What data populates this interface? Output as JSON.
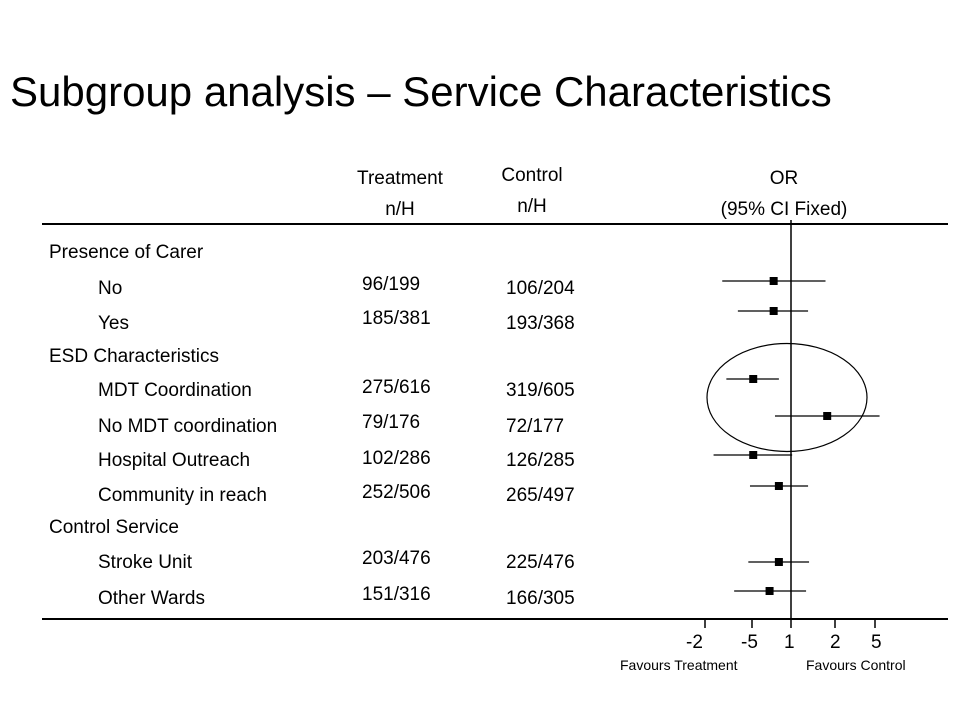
{
  "title": "Subgroup analysis – Service Characteristics",
  "headers": {
    "treatment": [
      "Treatment",
      "n/H"
    ],
    "control": [
      "Control",
      "n/H"
    ],
    "or": [
      "OR",
      "(95% CI Fixed)"
    ]
  },
  "groups": [
    {
      "label": "Presence of Carer"
    },
    {
      "label": "ESD Characteristics"
    },
    {
      "label": "Control Service"
    }
  ],
  "rows": [
    {
      "label": "No",
      "treatment": "96/199",
      "control": "106/204"
    },
    {
      "label": "Yes",
      "treatment": "185/381",
      "control": "193/368"
    },
    {
      "label": "MDT Coordination",
      "treatment": "275/616",
      "control": "319/605"
    },
    {
      "label": "No MDT coordination",
      "treatment": "79/176",
      "control": "72/177"
    },
    {
      "label": "Hospital Outreach",
      "treatment": "102/286",
      "control": "126/285"
    },
    {
      "label": "Community in reach",
      "treatment": "252/506",
      "control": "265/497"
    },
    {
      "label": "Stroke Unit",
      "treatment": "203/476",
      "control": "225/476"
    },
    {
      "label": "Other Wards",
      "treatment": "151/316",
      "control": "166/305"
    }
  ],
  "axis": {
    "ticks": [
      "-2",
      "-5",
      "1",
      "2",
      "5"
    ],
    "favours_left": "Favours Treatment",
    "favours_right": "Favours Control"
  },
  "chart_data": {
    "type": "forest",
    "title": "Subgroup analysis – Service Characteristics",
    "xlabel": "OR (95% CI Fixed)",
    "reference_line": 1,
    "tick_labels": [
      "-2",
      "-5",
      "1",
      "2",
      "5"
    ],
    "highlighted_rows": [
      "MDT Coordination",
      "No MDT coordination"
    ],
    "series": [
      {
        "label": "No",
        "or": 0.86,
        "ci": [
          0.55,
          1.35
        ]
      },
      {
        "label": "Yes",
        "or": 0.86,
        "ci": [
          0.63,
          1.16
        ]
      },
      {
        "label": "MDT Coordination",
        "or": 0.72,
        "ci": [
          0.57,
          0.9
        ]
      },
      {
        "label": "No MDT coordination",
        "or": 1.37,
        "ci": [
          0.87,
          2.16
        ]
      },
      {
        "label": "Hospital Outreach",
        "or": 0.72,
        "ci": [
          0.51,
          1.01
        ]
      },
      {
        "label": "Community in reach",
        "or": 0.9,
        "ci": [
          0.7,
          1.16
        ]
      },
      {
        "label": "Stroke Unit",
        "or": 0.9,
        "ci": [
          0.69,
          1.17
        ]
      },
      {
        "label": "Other Wards",
        "or": 0.83,
        "ci": [
          0.61,
          1.14
        ]
      }
    ]
  }
}
